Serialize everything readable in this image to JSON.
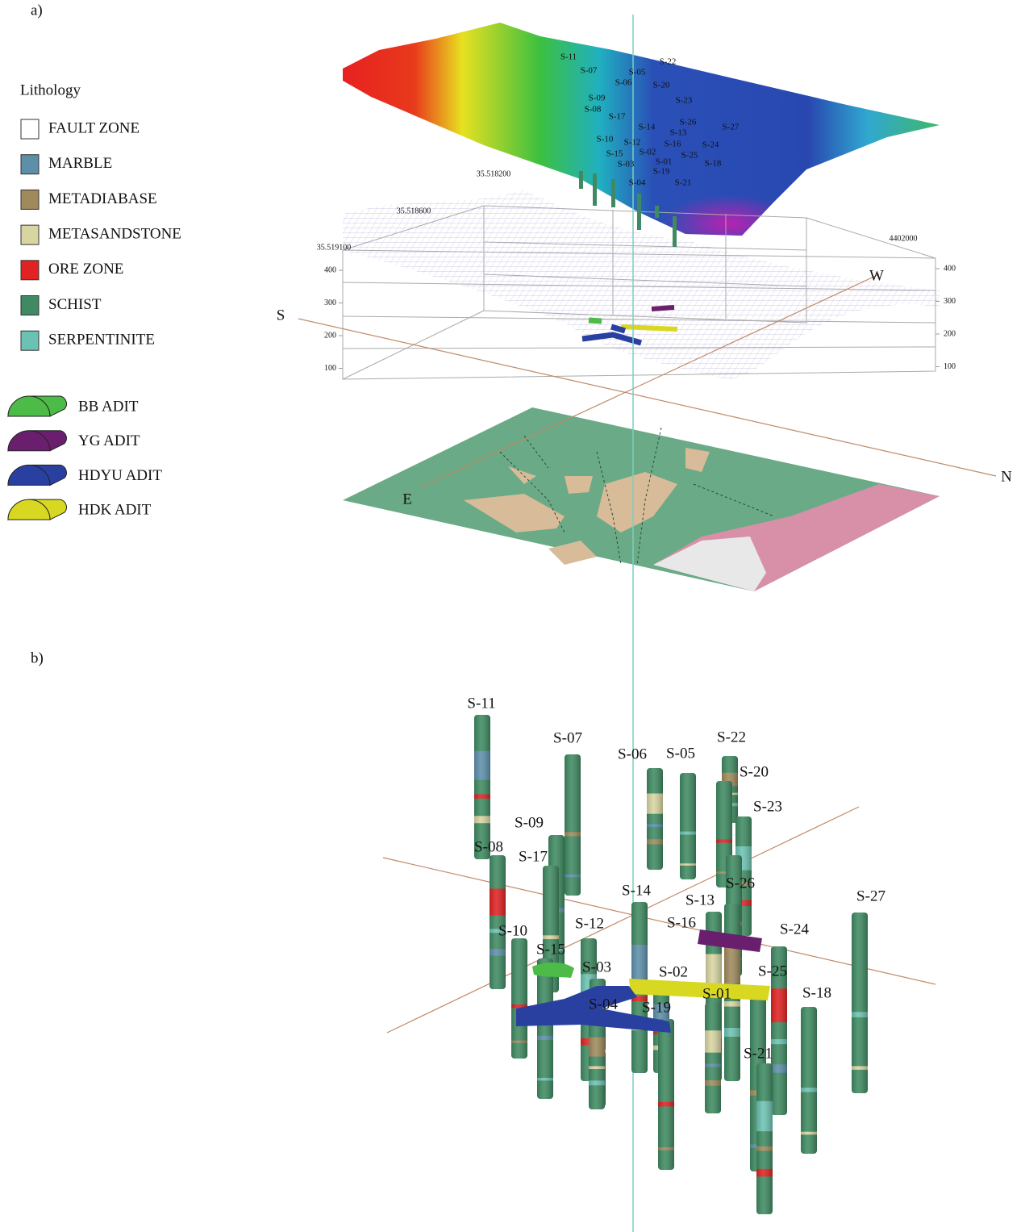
{
  "panel_a": {
    "label": "a)",
    "legend": {
      "title": "Lithology",
      "lithology": [
        {
          "name": "FAULT ZONE",
          "color": "#ffffff"
        },
        {
          "name": "MARBLE",
          "color": "#5d8faa"
        },
        {
          "name": "METADIABASE",
          "color": "#a08a5c"
        },
        {
          "name": "METASANDSTONE",
          "color": "#d8d5a2"
        },
        {
          "name": "ORE ZONE",
          "color": "#e02222"
        },
        {
          "name": "SCHIST",
          "color": "#3f8a62"
        },
        {
          "name": "SERPENTINITE",
          "color": "#6cc2b2"
        }
      ],
      "adits": [
        {
          "name": "BB ADIT",
          "color": "#4cbb47"
        },
        {
          "name": "YG ADIT",
          "color": "#6a1f6e"
        },
        {
          "name": "HDYU ADIT",
          "color": "#2a40a0"
        },
        {
          "name": "HDK ADIT",
          "color": "#d8d822"
        }
      ]
    },
    "boreholes": [
      "S-11",
      "S-07",
      "S-05",
      "S-22",
      "S-06",
      "S-20",
      "S-09",
      "S-23",
      "S-08",
      "S-17",
      "S-26",
      "S-27",
      "S-14",
      "S-13",
      "S-10",
      "S-12",
      "S-16",
      "S-24",
      "S-15",
      "S-02",
      "S-25",
      "S-01",
      "S-18",
      "S-03",
      "S-19",
      "S-04",
      "S-21"
    ],
    "coordinates": [
      "35.518200",
      "35.518600",
      "35.519100",
      "4402000"
    ],
    "left_ticks": [
      400,
      300,
      200,
      100
    ],
    "right_ticks": [
      400,
      300,
      200,
      100
    ],
    "directions": [
      "S",
      "N",
      "E",
      "W"
    ]
  },
  "panel_b": {
    "label": "b)",
    "boreholes": [
      "S-11",
      "S-07",
      "S-06",
      "S-05",
      "S-22",
      "S-20",
      "S-23",
      "S-09",
      "S-08",
      "S-17",
      "S-14",
      "S-26",
      "S-13",
      "S-27",
      "S-16",
      "S-10",
      "S-12",
      "S-15",
      "S-24",
      "S-03",
      "S-02",
      "S-25",
      "S-01",
      "S-18",
      "S-04",
      "S-19",
      "S-21"
    ]
  }
}
